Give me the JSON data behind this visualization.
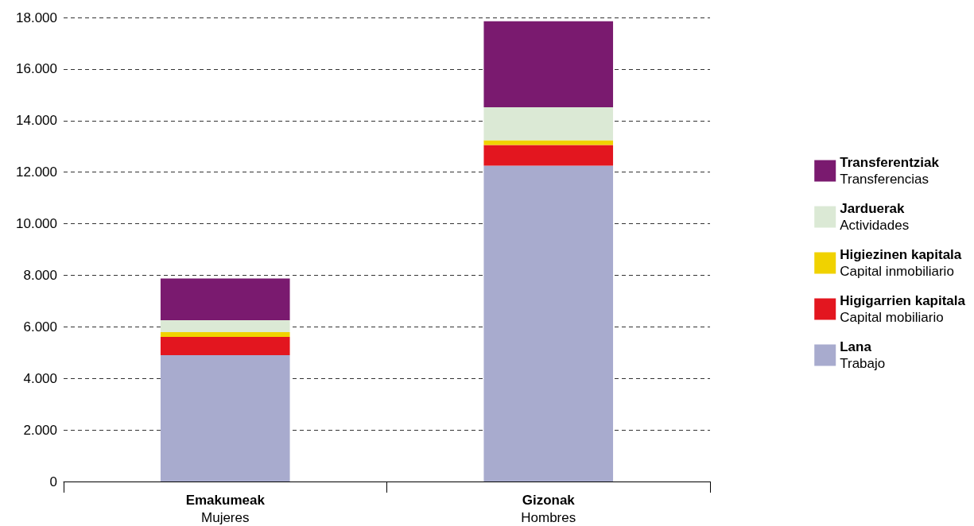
{
  "chart_data": {
    "type": "bar",
    "stacked": true,
    "categories": [
      "Emakumeak\nMujeres",
      "Gizonak\nHombres"
    ],
    "series": [
      {
        "name": "Lana\nTrabajo",
        "color": "#a8abce",
        "values": [
          4900,
          12250
        ]
      },
      {
        "name": "Higigarrien kapitala\nCapital mobiliario",
        "color": "#e3161f",
        "values": [
          710,
          800
        ]
      },
      {
        "name": "Higiezinen kapitala\nCapital inmobiliario",
        "color": "#f0d200",
        "values": [
          185,
          185
        ]
      },
      {
        "name": "Jarduerak\nActividades",
        "color": "#dbe9d5",
        "values": [
          460,
          1285
        ]
      },
      {
        "name": "Transferentziak\nTransferencias",
        "color": "#7a1a6f",
        "values": [
          1620,
          3335
        ]
      }
    ],
    "ylim": [
      0,
      18000
    ],
    "yticks": [
      0,
      {
        "value": 2000,
        "label": "2.000"
      },
      {
        "value": 4000,
        "label": "4.000"
      },
      {
        "value": 6000,
        "label": "6.000"
      },
      {
        "value": 8000,
        "label": "8.000"
      },
      {
        "value": 10000,
        "label": "10.000"
      },
      {
        "value": 12000,
        "label": "12.000"
      },
      {
        "value": 14000,
        "label": "14.000"
      },
      {
        "value": 16000,
        "label": "16.000"
      },
      {
        "value": 18000,
        "label": "18.000"
      }
    ],
    "grid": "y",
    "legend": "right"
  }
}
